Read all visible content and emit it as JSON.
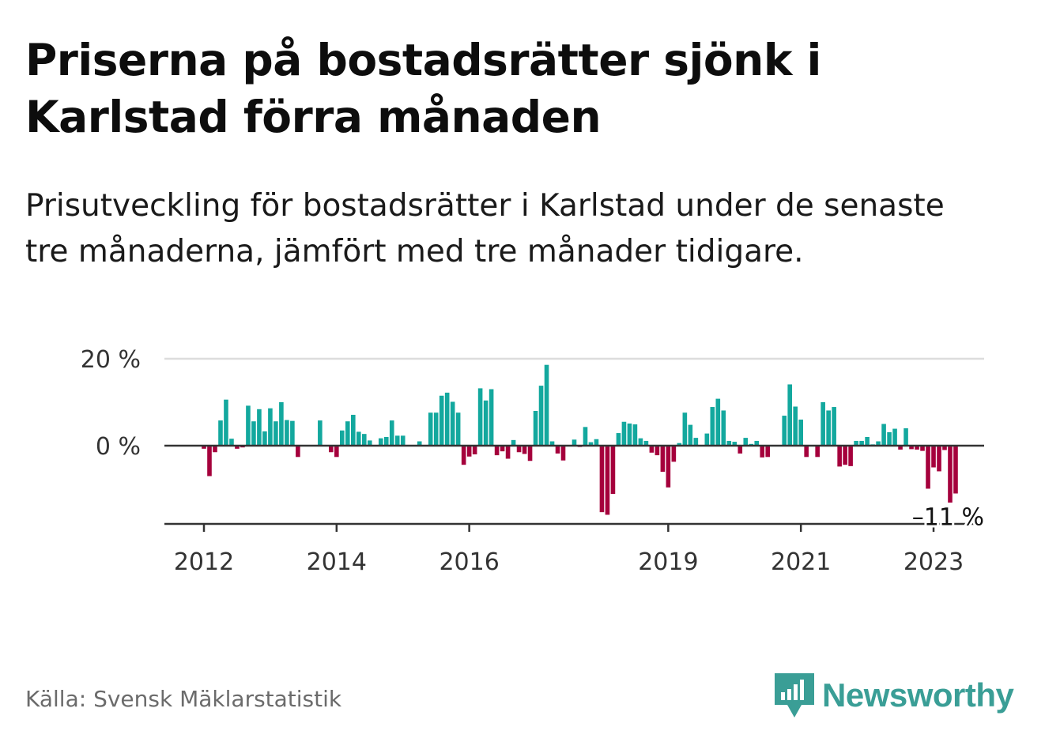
{
  "title": "Priserna på bostadsrätter sjönk i Karlstad förra månaden",
  "subtitle": "Prisutveckling för bostadsrätter i Karlstad under de senaste tre månaderna, jämfört med tre månader tidigare.",
  "source": "Källa: Svensk Mäklarstatistik",
  "brand": "Newsworthy",
  "colors": {
    "positive": "#13a89e",
    "negative": "#a5003c",
    "grid": "#dddddd",
    "axis": "#333333",
    "brand": "#3a9e96"
  },
  "chart_data": {
    "type": "bar",
    "start": "2012-01",
    "ylim": [
      -18,
      20
    ],
    "yticks": [
      {
        "value": 20,
        "label": "20 %"
      },
      {
        "value": 0,
        "label": "0 %"
      }
    ],
    "xticks": [
      {
        "index": 0,
        "label": "2012"
      },
      {
        "index": 24,
        "label": "2014"
      },
      {
        "index": 48,
        "label": "2016"
      },
      {
        "index": 84,
        "label": "2019"
      },
      {
        "index": 108,
        "label": "2021"
      },
      {
        "index": 132,
        "label": "2023"
      }
    ],
    "annotation": {
      "label": "–11 %",
      "value": -11
    },
    "values": [
      -0.7,
      -7,
      -1.5,
      5.8,
      10.6,
      1.6,
      -0.7,
      -0.4,
      9.2,
      5.6,
      8.4,
      3.3,
      8.6,
      5.6,
      10,
      5.9,
      5.7,
      -2.6,
      0,
      0,
      0,
      5.8,
      0,
      -1.5,
      -2.6,
      3.5,
      5.6,
      7.1,
      3.2,
      2.7,
      1.2,
      0,
      1.7,
      2,
      5.8,
      2.3,
      2.3,
      0,
      0,
      1,
      0,
      7.6,
      7.6,
      11.5,
      12.2,
      10.1,
      7.6,
      -4.4,
      -2.5,
      -2,
      13.2,
      10.4,
      13,
      -2.2,
      -1.3,
      -3,
      1.3,
      -1.5,
      -1.9,
      -3.5,
      8,
      13.8,
      18.6,
      1,
      -1.8,
      -3.4,
      0,
      1.4,
      -0.3,
      4.3,
      0.8,
      1.5,
      -15.3,
      -15.9,
      -11.1,
      2.9,
      5.5,
      5.1,
      4.9,
      1.7,
      1.1,
      -1.6,
      -2.2,
      -6,
      -9.6,
      -3.7,
      0.6,
      7.6,
      4.8,
      1.8,
      0,
      2.8,
      8.9,
      10.8,
      8.1,
      1.1,
      0.9,
      -1.8,
      1.8,
      0.4,
      1.1,
      -2.7,
      -2.6,
      0,
      0,
      6.9,
      14.1,
      9,
      6,
      -2.6,
      0,
      -2.6,
      10,
      8.1,
      8.9,
      -4.8,
      -4.4,
      -4.7,
      1.1,
      1.1,
      2,
      0.3,
      1,
      5,
      3.1,
      3.9,
      -0.9,
      4,
      -0.8,
      -0.9,
      -1.2,
      -9.9,
      -5,
      -5.9,
      -1,
      -13.1,
      -11
    ]
  }
}
